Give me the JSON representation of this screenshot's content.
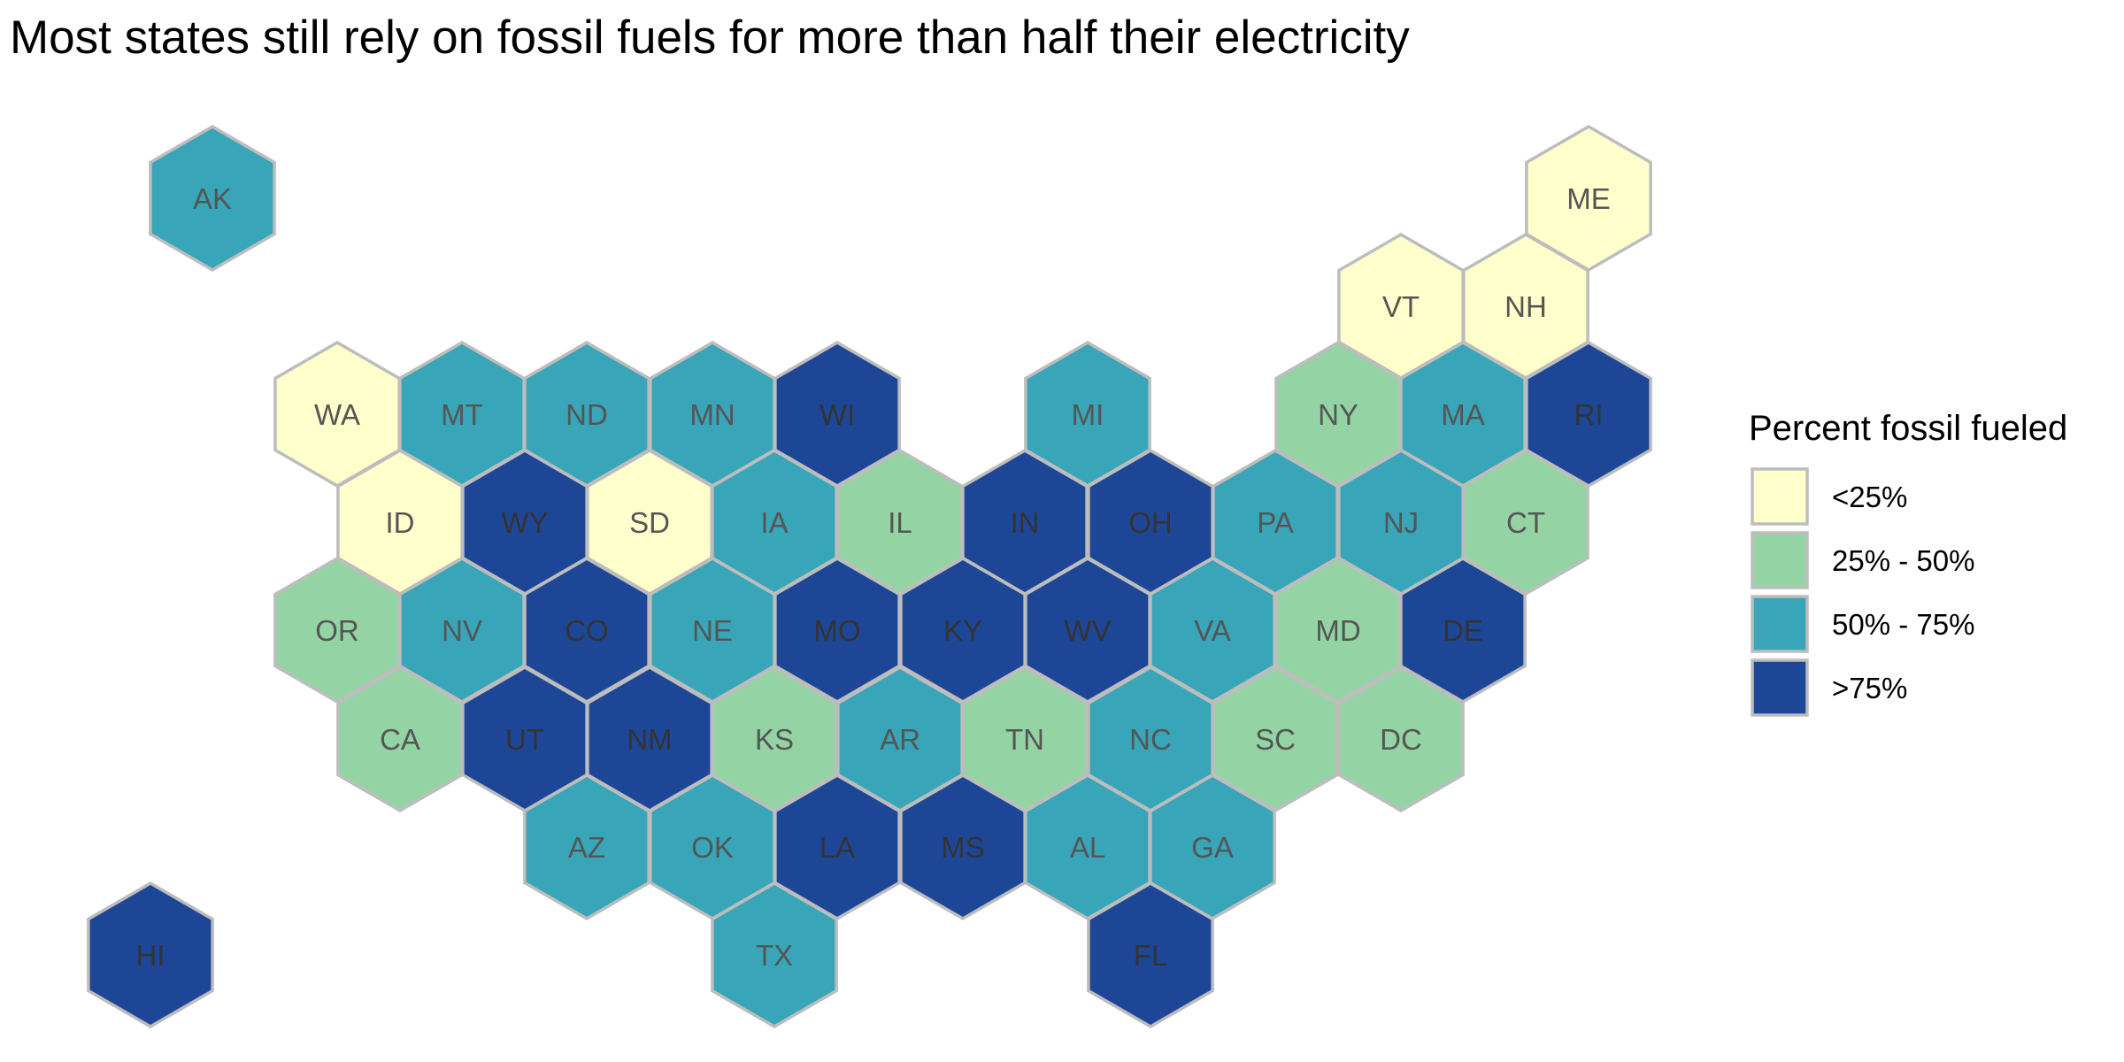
{
  "title": "Most states still rely on fossil fuels for more than half their electricity",
  "legend": {
    "title": "Percent fossil fueled",
    "items": [
      {
        "key": "lt25",
        "label": "<25%",
        "color": "#FFFFCC"
      },
      {
        "key": "25to50",
        "label": "25% - 50%",
        "color": "#94D4A4"
      },
      {
        "key": "50to75",
        "label": "50% - 75%",
        "color": "#38A6B8"
      },
      {
        "key": "gt75",
        "label": ">75%",
        "color": "#1D4796"
      }
    ]
  },
  "chart_data": {
    "type": "hex-tile-map",
    "title": "Most states still rely on fossil fuels for more than half their electricity",
    "legend_title": "Percent fossil fueled",
    "legend_placement": "right",
    "categories": [
      "<25%",
      "25% - 50%",
      "50% - 75%",
      ">75%"
    ],
    "states": [
      {
        "abbr": "AK",
        "category": "50% - 75%"
      },
      {
        "abbr": "ME",
        "category": "<25%"
      },
      {
        "abbr": "VT",
        "category": "<25%"
      },
      {
        "abbr": "NH",
        "category": "<25%"
      },
      {
        "abbr": "WA",
        "category": "<25%"
      },
      {
        "abbr": "MT",
        "category": "50% - 75%"
      },
      {
        "abbr": "ND",
        "category": "50% - 75%"
      },
      {
        "abbr": "MN",
        "category": "50% - 75%"
      },
      {
        "abbr": "WI",
        "category": ">75%"
      },
      {
        "abbr": "MI",
        "category": "50% - 75%"
      },
      {
        "abbr": "NY",
        "category": "25% - 50%"
      },
      {
        "abbr": "MA",
        "category": "50% - 75%"
      },
      {
        "abbr": "RI",
        "category": ">75%"
      },
      {
        "abbr": "ID",
        "category": "<25%"
      },
      {
        "abbr": "WY",
        "category": ">75%"
      },
      {
        "abbr": "SD",
        "category": "<25%"
      },
      {
        "abbr": "IA",
        "category": "50% - 75%"
      },
      {
        "abbr": "IL",
        "category": "25% - 50%"
      },
      {
        "abbr": "IN",
        "category": ">75%"
      },
      {
        "abbr": "OH",
        "category": ">75%"
      },
      {
        "abbr": "PA",
        "category": "50% - 75%"
      },
      {
        "abbr": "NJ",
        "category": "50% - 75%"
      },
      {
        "abbr": "CT",
        "category": "25% - 50%"
      },
      {
        "abbr": "OR",
        "category": "25% - 50%"
      },
      {
        "abbr": "NV",
        "category": "50% - 75%"
      },
      {
        "abbr": "CO",
        "category": ">75%"
      },
      {
        "abbr": "NE",
        "category": "50% - 75%"
      },
      {
        "abbr": "MO",
        "category": ">75%"
      },
      {
        "abbr": "KY",
        "category": ">75%"
      },
      {
        "abbr": "WV",
        "category": ">75%"
      },
      {
        "abbr": "VA",
        "category": "50% - 75%"
      },
      {
        "abbr": "MD",
        "category": "25% - 50%"
      },
      {
        "abbr": "DE",
        "category": ">75%"
      },
      {
        "abbr": "CA",
        "category": "25% - 50%"
      },
      {
        "abbr": "UT",
        "category": ">75%"
      },
      {
        "abbr": "NM",
        "category": ">75%"
      },
      {
        "abbr": "KS",
        "category": "25% - 50%"
      },
      {
        "abbr": "AR",
        "category": "50% - 75%"
      },
      {
        "abbr": "TN",
        "category": "25% - 50%"
      },
      {
        "abbr": "NC",
        "category": "50% - 75%"
      },
      {
        "abbr": "SC",
        "category": "25% - 50%"
      },
      {
        "abbr": "DC",
        "category": "25% - 50%"
      },
      {
        "abbr": "AZ",
        "category": "50% - 75%"
      },
      {
        "abbr": "OK",
        "category": "50% - 75%"
      },
      {
        "abbr": "LA",
        "category": ">75%"
      },
      {
        "abbr": "MS",
        "category": ">75%"
      },
      {
        "abbr": "AL",
        "category": "50% - 75%"
      },
      {
        "abbr": "GA",
        "category": "50% - 75%"
      },
      {
        "abbr": "HI",
        "category": ">75%"
      },
      {
        "abbr": "TX",
        "category": "50% - 75%"
      },
      {
        "abbr": "FL",
        "category": ">75%"
      }
    ]
  }
}
